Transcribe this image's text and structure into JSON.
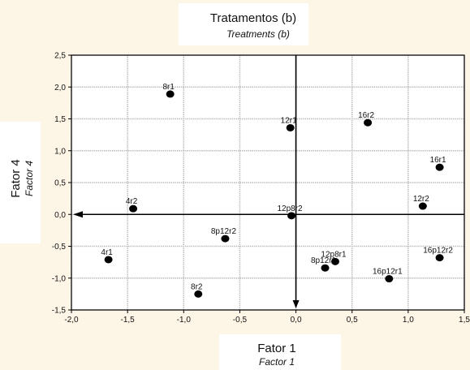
{
  "chart_data": {
    "type": "scatter",
    "title": "Tratamentos (b)",
    "subtitle": "Treatments (b)",
    "xlabel": "Fator 1",
    "xlabel_en": "Factor 1",
    "ylabel": "Fator 4",
    "ylabel_en": "Factor 4",
    "xlim": [
      -2.0,
      1.5
    ],
    "ylim": [
      -1.5,
      2.5
    ],
    "x_ticks": [
      -2.0,
      -1.5,
      -1.0,
      -0.5,
      0.0,
      0.5,
      1.0,
      1.5
    ],
    "x_tick_labels": [
      "-2,0",
      "-1,5",
      "-1,0",
      "-0,5",
      "0,0",
      "0,5",
      "1,0",
      "1,5"
    ],
    "y_ticks": [
      -1.5,
      -1.0,
      -0.5,
      0.0,
      0.5,
      1.0,
      1.5,
      2.0,
      2.5
    ],
    "y_tick_labels": [
      "-1,5",
      "-1,0",
      "-0,5",
      "0,0",
      "0,5",
      "1,0",
      "1,5",
      "2,0",
      "2,5"
    ],
    "grid": true,
    "points": [
      {
        "label": "8r1",
        "x": -1.12,
        "y": 1.89
      },
      {
        "label": "12r1",
        "x": -0.05,
        "y": 1.36
      },
      {
        "label": "16r2",
        "x": 0.64,
        "y": 1.44
      },
      {
        "label": "16r1",
        "x": 1.28,
        "y": 0.74
      },
      {
        "label": "4r2",
        "x": -1.45,
        "y": 0.09
      },
      {
        "label": "12p8r2",
        "x": -0.04,
        "y": -0.02
      },
      {
        "label": "12r2",
        "x": 1.13,
        "y": 0.13
      },
      {
        "label": "8p12r2",
        "x": -0.63,
        "y": -0.38
      },
      {
        "label": "16p12r2",
        "x": 1.28,
        "y": -0.68
      },
      {
        "label": "4r1",
        "x": -1.67,
        "y": -0.71
      },
      {
        "label": "8p12r1",
        "x": 0.26,
        "y": -0.84
      },
      {
        "label": "12p8r1",
        "x": 0.35,
        "y": -0.74
      },
      {
        "label": "16p12r1",
        "x": 0.83,
        "y": -1.01
      },
      {
        "label": "8r2",
        "x": -0.87,
        "y": -1.25
      }
    ]
  }
}
